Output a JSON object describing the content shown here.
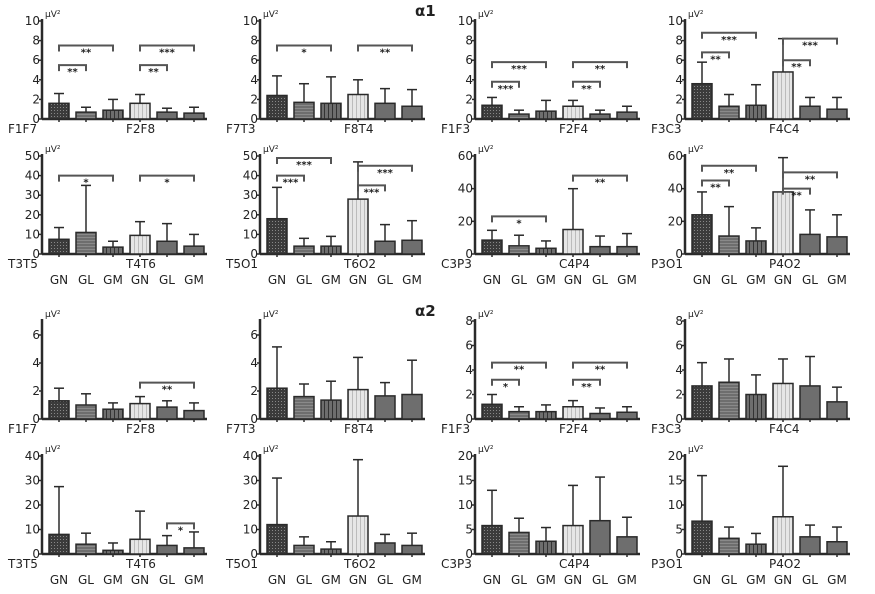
{
  "sections": [
    {
      "label": "α1"
    },
    {
      "label": "α2"
    }
  ],
  "unit": "μV²",
  "groups": [
    "GN",
    "GL",
    "GM"
  ],
  "colors": {
    "dark": "#3b3b3b",
    "mid": "#6e6e6e",
    "light": "#e6e6e6",
    "line": "#2a2a2a",
    "bracket": "#555555"
  },
  "chart_data": [
    {
      "type": "bar",
      "section": "α1",
      "pairs": [
        "F1F7",
        "F2F8"
      ],
      "ylim": [
        0,
        10
      ],
      "yticks": [
        0,
        2,
        4,
        6,
        8,
        10
      ],
      "values": [
        1.6,
        0.7,
        0.9,
        1.6,
        0.7,
        0.6
      ],
      "error_upper": [
        2.6,
        1.2,
        2.0,
        2.5,
        1.1,
        1.2
      ],
      "brackets": [
        {
          "from": 0,
          "to": 1,
          "label": "**",
          "level": 5.5
        },
        {
          "from": 0,
          "to": 2,
          "label": "**",
          "level": 7.5
        },
        {
          "from": 3,
          "to": 4,
          "label": "**",
          "level": 5.5
        },
        {
          "from": 3,
          "to": 5,
          "label": "***",
          "level": 7.5
        }
      ]
    },
    {
      "type": "bar",
      "section": "α1",
      "pairs": [
        "F7T3",
        "F8T4"
      ],
      "ylim": [
        0,
        10
      ],
      "yticks": [
        0,
        2,
        4,
        6,
        8,
        10
      ],
      "values": [
        2.4,
        1.7,
        1.6,
        2.5,
        1.6,
        1.3
      ],
      "error_upper": [
        4.4,
        3.6,
        4.3,
        4.0,
        3.1,
        3.0
      ],
      "brackets": [
        {
          "from": 0,
          "to": 2,
          "label": "*",
          "level": 7.5
        },
        {
          "from": 3,
          "to": 5,
          "label": "**",
          "level": 7.5
        }
      ]
    },
    {
      "type": "bar",
      "section": "α1",
      "pairs": [
        "F1F3",
        "F2F4"
      ],
      "ylim": [
        0,
        10
      ],
      "yticks": [
        0,
        2,
        4,
        6,
        8,
        10
      ],
      "values": [
        1.4,
        0.5,
        0.8,
        1.3,
        0.5,
        0.7
      ],
      "error_upper": [
        2.2,
        0.9,
        1.9,
        1.9,
        0.9,
        1.3
      ],
      "brackets": [
        {
          "from": 0,
          "to": 1,
          "label": "***",
          "level": 3.8
        },
        {
          "from": 0,
          "to": 2,
          "label": "***",
          "level": 5.8
        },
        {
          "from": 3,
          "to": 4,
          "label": "**",
          "level": 3.8
        },
        {
          "from": 3,
          "to": 5,
          "label": "**",
          "level": 5.8
        }
      ]
    },
    {
      "type": "bar",
      "section": "α1",
      "pairs": [
        "F3C3",
        "F4C4"
      ],
      "ylim": [
        0,
        10
      ],
      "yticks": [
        0,
        2,
        4,
        6,
        8,
        10
      ],
      "values": [
        3.6,
        1.3,
        1.4,
        4.8,
        1.3,
        1.0
      ],
      "error_upper": [
        5.8,
        2.5,
        3.5,
        8.2,
        2.2,
        2.2
      ],
      "brackets": [
        {
          "from": 0,
          "to": 1,
          "label": "**",
          "level": 6.8
        },
        {
          "from": 0,
          "to": 2,
          "label": "***",
          "level": 8.8
        },
        {
          "from": 3,
          "to": 4,
          "label": "**",
          "level": 6.0
        },
        {
          "from": 3,
          "to": 5,
          "label": "***",
          "level": 8.2
        }
      ]
    },
    {
      "type": "bar",
      "section": "α1",
      "pairs": [
        "T3T5",
        "T4T6"
      ],
      "ylim": [
        0,
        50
      ],
      "yticks": [
        0,
        10,
        20,
        30,
        40,
        50
      ],
      "values": [
        7.5,
        11,
        3.5,
        9.5,
        6.5,
        4
      ],
      "error_upper": [
        13.5,
        35,
        6.5,
        16.5,
        15.5,
        10
      ],
      "brackets": [
        {
          "from": 0,
          "to": 2,
          "label": "*",
          "level": 40
        },
        {
          "from": 3,
          "to": 5,
          "label": "*",
          "level": 40
        }
      ]
    },
    {
      "type": "bar",
      "section": "α1",
      "pairs": [
        "T5O1",
        "T6O2"
      ],
      "ylim": [
        0,
        50
      ],
      "yticks": [
        0,
        10,
        20,
        30,
        40,
        50
      ],
      "values": [
        18,
        4,
        4,
        28,
        6.5,
        7
      ],
      "error_upper": [
        34,
        8,
        9,
        47,
        15,
        17
      ],
      "brackets": [
        {
          "from": 0,
          "to": 1,
          "label": "***",
          "level": 40
        },
        {
          "from": 0,
          "to": 2,
          "label": "***",
          "level": 49
        },
        {
          "from": 3,
          "to": 4,
          "label": "***",
          "level": 35
        },
        {
          "from": 3,
          "to": 5,
          "label": "***",
          "level": 45
        }
      ]
    },
    {
      "type": "bar",
      "section": "α1",
      "pairs": [
        "C3P3",
        "C4P4"
      ],
      "ylim": [
        0,
        60
      ],
      "yticks": [
        0,
        20,
        40,
        60
      ],
      "values": [
        8.5,
        5,
        3.5,
        15,
        4.5,
        4.5
      ],
      "error_upper": [
        14.5,
        11.5,
        8,
        40,
        11,
        12.5
      ],
      "brackets": [
        {
          "from": 0,
          "to": 2,
          "label": "*",
          "level": 23
        },
        {
          "from": 3,
          "to": 5,
          "label": "**",
          "level": 48
        }
      ]
    },
    {
      "type": "bar",
      "section": "α1",
      "pairs": [
        "P3O1",
        "P4O2"
      ],
      "ylim": [
        0,
        60
      ],
      "yticks": [
        0,
        20,
        40,
        60
      ],
      "values": [
        24,
        11,
        8,
        38,
        12,
        10.5
      ],
      "error_upper": [
        38,
        29,
        16,
        59,
        27,
        24
      ],
      "brackets": [
        {
          "from": 0,
          "to": 1,
          "label": "**",
          "level": 45
        },
        {
          "from": 0,
          "to": 2,
          "label": "**",
          "level": 54
        },
        {
          "from": 3,
          "to": 4,
          "label": "**",
          "level": 40
        },
        {
          "from": 3,
          "to": 5,
          "label": "**",
          "level": 50
        }
      ]
    },
    {
      "type": "bar",
      "section": "α2",
      "pairs": [
        "F1F7",
        "F2F8"
      ],
      "ylim": [
        0,
        7
      ],
      "yticks": [
        0,
        2,
        4,
        6
      ],
      "values": [
        1.3,
        1.0,
        0.7,
        1.1,
        0.85,
        0.6
      ],
      "error_upper": [
        2.2,
        1.8,
        1.15,
        1.6,
        1.3,
        1.15
      ],
      "brackets": [
        {
          "from": 3,
          "to": 5,
          "label": "**",
          "level": 2.6
        }
      ]
    },
    {
      "type": "bar",
      "section": "α2",
      "pairs": [
        "F7T3",
        "F8T4"
      ],
      "ylim": [
        0,
        7
      ],
      "yticks": [
        0,
        2,
        4,
        6
      ],
      "values": [
        2.2,
        1.6,
        1.35,
        2.1,
        1.65,
        1.75
      ],
      "error_upper": [
        5.15,
        2.5,
        2.7,
        4.4,
        2.6,
        4.2
      ],
      "brackets": []
    },
    {
      "type": "bar",
      "section": "α2",
      "pairs": [
        "F1F3",
        "F2F4"
      ],
      "ylim": [
        0,
        8
      ],
      "yticks": [
        0,
        2,
        4,
        6,
        8
      ],
      "values": [
        1.2,
        0.6,
        0.6,
        1.0,
        0.45,
        0.55
      ],
      "error_upper": [
        2.0,
        1.0,
        1.15,
        1.5,
        0.9,
        1.0
      ],
      "brackets": [
        {
          "from": 0,
          "to": 1,
          "label": "*",
          "level": 3.2
        },
        {
          "from": 0,
          "to": 2,
          "label": "**",
          "level": 4.6
        },
        {
          "from": 3,
          "to": 4,
          "label": "**",
          "level": 3.2
        },
        {
          "from": 3,
          "to": 5,
          "label": "**",
          "level": 4.6
        }
      ]
    },
    {
      "type": "bar",
      "section": "α2",
      "pairs": [
        "F3C3",
        "F4C4"
      ],
      "ylim": [
        0,
        8
      ],
      "yticks": [
        0,
        2,
        4,
        6,
        8
      ],
      "values": [
        2.7,
        3.0,
        2.0,
        2.9,
        2.7,
        1.4
      ],
      "error_upper": [
        4.6,
        4.9,
        3.6,
        4.9,
        5.1,
        2.6
      ],
      "brackets": []
    },
    {
      "type": "bar",
      "section": "α2",
      "pairs": [
        "T3T5",
        "T4T6"
      ],
      "ylim": [
        0,
        40
      ],
      "yticks": [
        0,
        10,
        20,
        30,
        40
      ],
      "values": [
        8,
        4,
        1.5,
        6,
        3.5,
        2.5
      ],
      "error_upper": [
        27.5,
        8.5,
        4.5,
        17.5,
        7.5,
        9
      ],
      "brackets": [
        {
          "from": 4,
          "to": 5,
          "label": "*",
          "level": 12.5
        }
      ]
    },
    {
      "type": "bar",
      "section": "α2",
      "pairs": [
        "T5O1",
        "T6O2"
      ],
      "ylim": [
        0,
        40
      ],
      "yticks": [
        0,
        10,
        20,
        30,
        40
      ],
      "values": [
        12,
        3.5,
        2,
        15.5,
        4.5,
        3.5
      ],
      "error_upper": [
        31,
        7,
        5,
        38.5,
        8,
        8.5
      ],
      "brackets": []
    },
    {
      "type": "bar",
      "section": "α2",
      "pairs": [
        "C3P3",
        "C4P4"
      ],
      "ylim": [
        0,
        20
      ],
      "yticks": [
        0,
        5,
        10,
        15,
        20
      ],
      "values": [
        5.8,
        4.4,
        2.6,
        5.8,
        6.8,
        3.5
      ],
      "error_upper": [
        13,
        7.3,
        5.4,
        14,
        15.7,
        7.5
      ],
      "brackets": []
    },
    {
      "type": "bar",
      "section": "α2",
      "pairs": [
        "P3O1",
        "P4O2"
      ],
      "ylim": [
        0,
        20
      ],
      "yticks": [
        0,
        5,
        10,
        15,
        20
      ],
      "values": [
        6.7,
        3.2,
        2,
        7.6,
        3.5,
        2.5
      ],
      "error_upper": [
        16,
        5.5,
        4.2,
        17.9,
        5.9,
        5.5
      ],
      "brackets": []
    }
  ]
}
